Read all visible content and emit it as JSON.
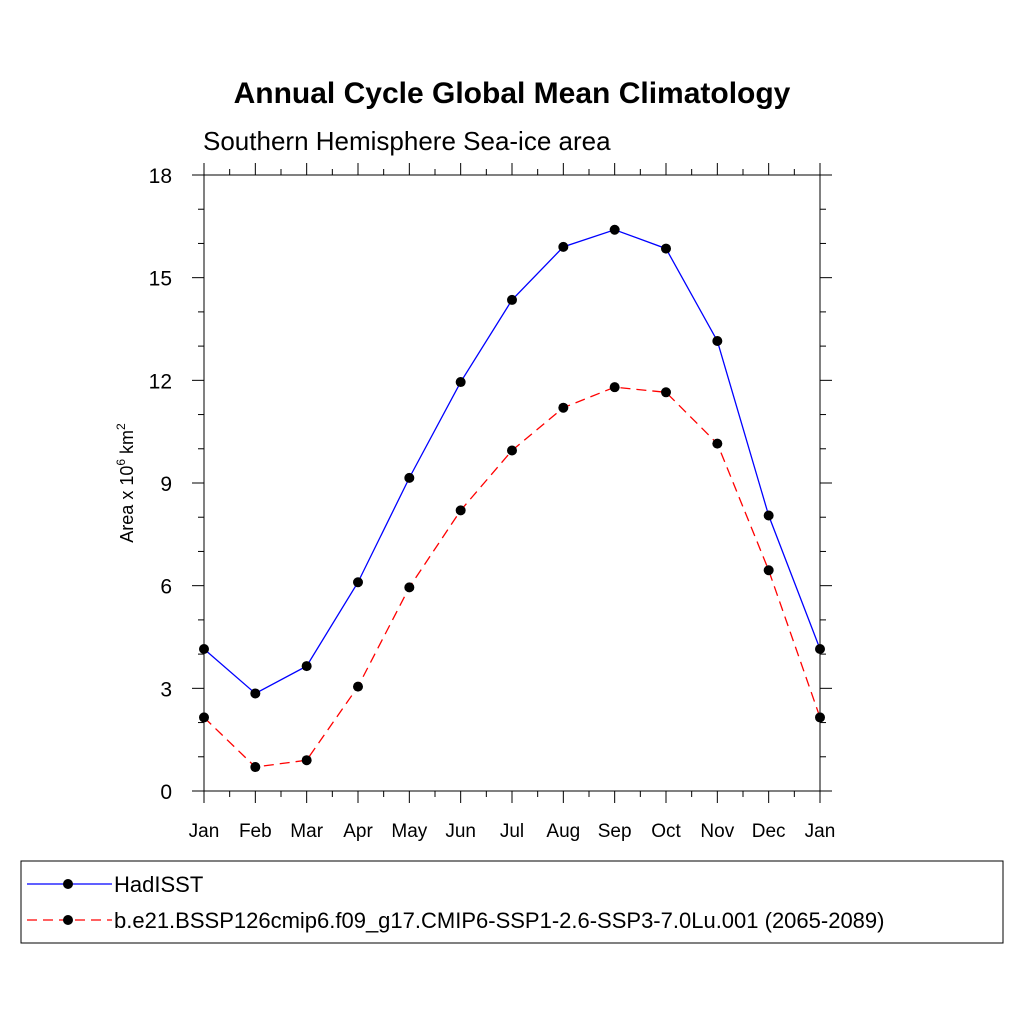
{
  "chart_data": {
    "type": "line",
    "title": "Annual Cycle Global Mean Climatology",
    "subtitle": "Southern Hemisphere Sea-ice area",
    "ylabel_prefix": "Area x 10",
    "ylabel_exp1": "6",
    "ylabel_unit": " km",
    "ylabel_exp2": "2",
    "xlabel": "",
    "categories": [
      "Jan",
      "Feb",
      "Mar",
      "Apr",
      "May",
      "Jun",
      "Jul",
      "Aug",
      "Sep",
      "Oct",
      "Nov",
      "Dec",
      "Jan"
    ],
    "ylim": [
      0,
      18
    ],
    "yticks": [
      0,
      3,
      6,
      9,
      12,
      15,
      18
    ],
    "yticklabels": [
      "0",
      "3",
      "6",
      "9",
      "12",
      "15",
      "18"
    ],
    "grid": false,
    "legend_placement": "bottom",
    "series": [
      {
        "name": "HadISST",
        "color": "#0000ff",
        "dashed": false,
        "marker": "filled-circle",
        "values": [
          4.15,
          2.85,
          3.65,
          6.1,
          9.15,
          11.95,
          14.35,
          15.9,
          16.4,
          15.85,
          13.15,
          8.05,
          4.15
        ]
      },
      {
        "name": "b.e21.BSSP126cmip6.f09_g17.CMIP6-SSP1-2.6-SSP3-7.0Lu.001 (2065-2089)",
        "color": "#ff0000",
        "dashed": true,
        "marker": "filled-circle",
        "values": [
          2.15,
          0.7,
          0.9,
          3.05,
          5.95,
          8.2,
          9.95,
          11.2,
          11.8,
          11.65,
          10.15,
          6.45,
          2.15
        ]
      }
    ]
  }
}
